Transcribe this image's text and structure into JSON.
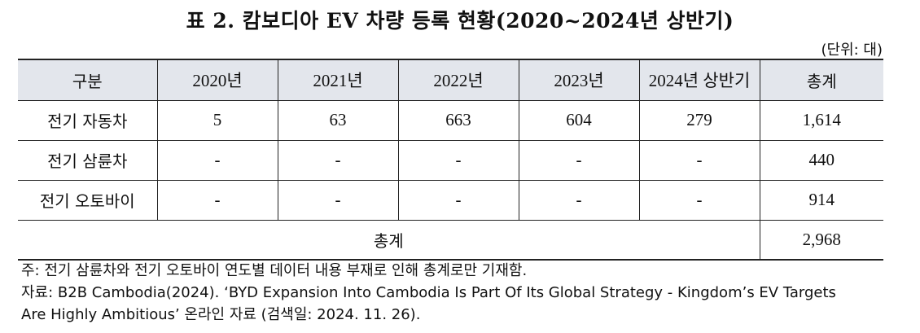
{
  "title": "표 2. 캄보디아 EV 차량 등록 현황(2020~2024년 상반기)",
  "unit": "(단위: 대)",
  "table": {
    "headers": [
      "구분",
      "2020년",
      "2021년",
      "2022년",
      "2023년",
      "2024년 상반기",
      "총계"
    ],
    "rows": [
      {
        "label": "전기 자동차",
        "values": [
          "5",
          "63",
          "663",
          "604",
          "279",
          "1,614"
        ]
      },
      {
        "label": "전기 삼륜차",
        "values": [
          "-",
          "-",
          "-",
          "-",
          "-",
          "440"
        ]
      },
      {
        "label": "전기 오토바이",
        "values": [
          "-",
          "-",
          "-",
          "-",
          "-",
          "914"
        ]
      }
    ],
    "total": {
      "label": "총계",
      "value": "2,968"
    }
  },
  "notes": {
    "note": "주: 전기 삼륜차와 전기 오토바이 연도별 데이터 내용 부재로 인해 총계로만 기재함.",
    "source_line1": "자료: B2B Cambodia(2024). ‘BYD Expansion Into Cambodia Is Part Of Its Global Strategy - Kingdom’s EV Targets",
    "source_line2": "Are Highly Ambitious’ 온라인 자료 (검색일: 2024. 11. 26)."
  }
}
